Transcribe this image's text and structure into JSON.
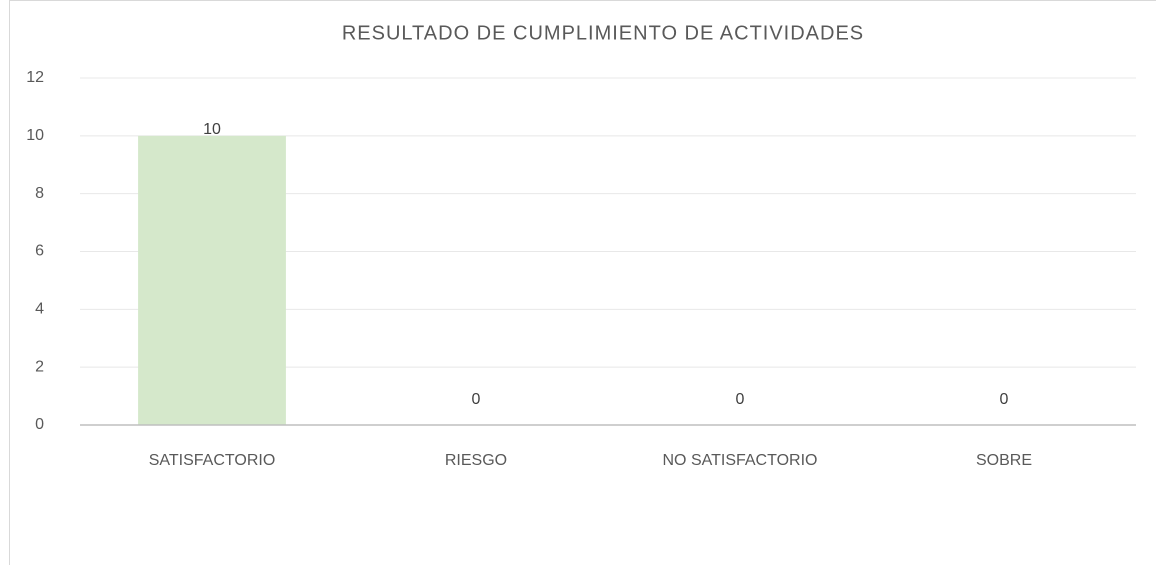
{
  "chart_data": {
    "type": "bar",
    "title": "RESULTADO DE CUMPLIMIENTO DE ACTIVIDADES",
    "categories": [
      "SATISFACTORIO",
      "RIESGO",
      "NO SATISFACTORIO",
      "SOBRE"
    ],
    "values": [
      10,
      0,
      0,
      0
    ],
    "color": "#d5e8cb",
    "ylim": [
      0,
      12
    ],
    "yticks": [
      0,
      2,
      4,
      6,
      8,
      10,
      12
    ],
    "grid": true
  }
}
